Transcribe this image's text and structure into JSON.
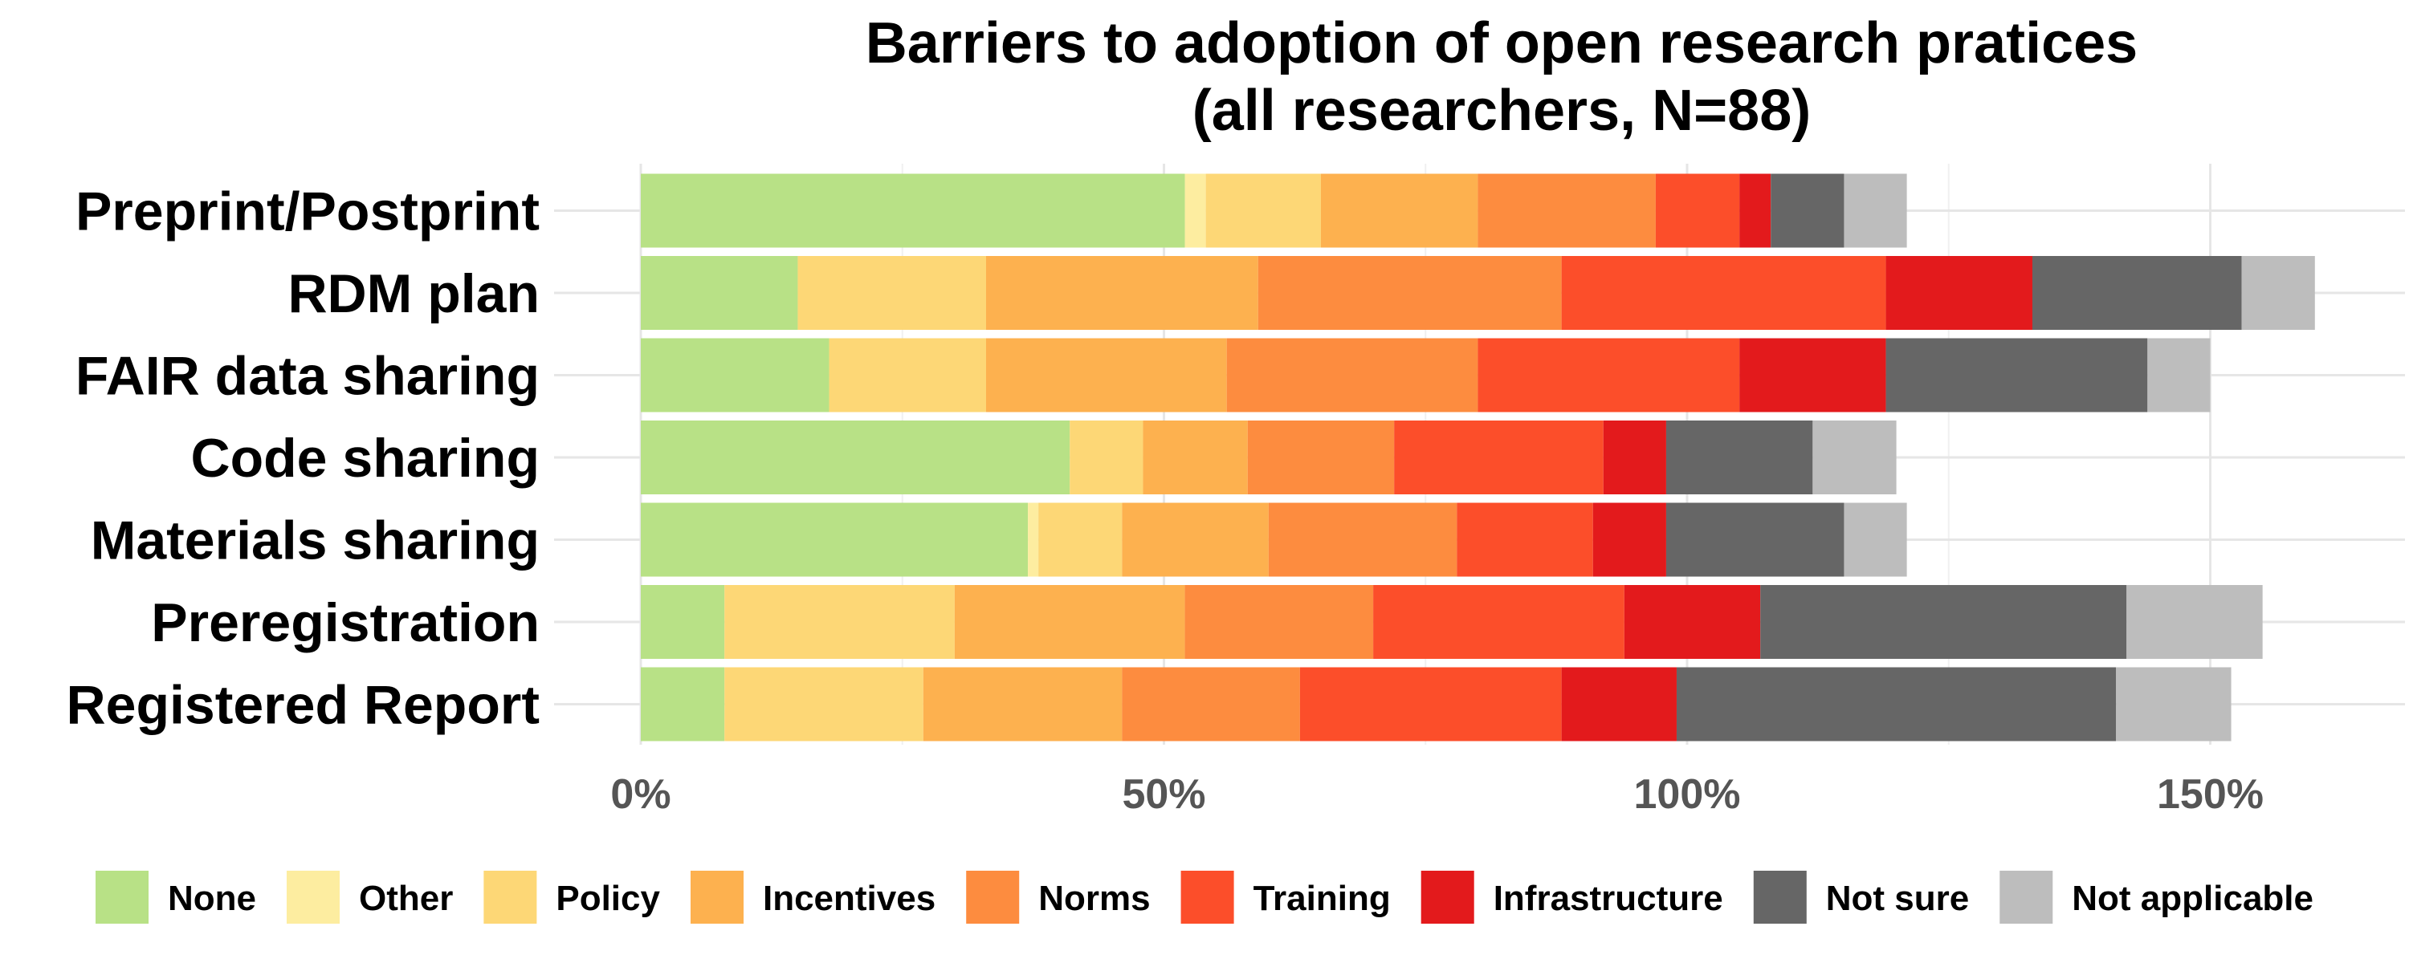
{
  "chart_data": {
    "type": "bar",
    "orientation": "horizontal",
    "stacked": true,
    "title": "Barriers to adoption of open research pratices",
    "subtitle": "(all researchers, N=88)",
    "xlabel": "",
    "ylabel": "",
    "xlim": [
      0,
      1.6
    ],
    "x_ticks": [
      0,
      0.5,
      1.0,
      1.5
    ],
    "x_tick_labels": [
      "0%",
      "50%",
      "100%",
      "150%"
    ],
    "grid": true,
    "legend_position": "bottom",
    "categories": [
      "Preprint/Postprint",
      "RDM plan",
      "FAIR data sharing",
      "Code sharing",
      "Materials sharing",
      "Preregistration",
      "Registered Report"
    ],
    "series": [
      {
        "name": "None",
        "color": "#B8E186",
        "values": [
          0.52,
          0.15,
          0.18,
          0.41,
          0.37,
          0.08,
          0.08
        ]
      },
      {
        "name": "Other",
        "color": "#FDEDA0",
        "values": [
          0.02,
          0.0,
          0.0,
          0.0,
          0.01,
          0.0,
          0.0
        ]
      },
      {
        "name": "Policy",
        "color": "#FDD776",
        "values": [
          0.11,
          0.18,
          0.15,
          0.07,
          0.08,
          0.22,
          0.19
        ]
      },
      {
        "name": "Incentives",
        "color": "#FDB14F",
        "values": [
          0.15,
          0.26,
          0.23,
          0.1,
          0.14,
          0.22,
          0.19
        ]
      },
      {
        "name": "Norms",
        "color": "#FD8C3F",
        "values": [
          0.17,
          0.29,
          0.24,
          0.14,
          0.18,
          0.18,
          0.17
        ]
      },
      {
        "name": "Training",
        "color": "#FC4E2A",
        "values": [
          0.08,
          0.31,
          0.25,
          0.2,
          0.13,
          0.24,
          0.25
        ]
      },
      {
        "name": "Infrastructure",
        "color": "#E31A1C",
        "values": [
          0.03,
          0.14,
          0.14,
          0.06,
          0.07,
          0.13,
          0.11
        ]
      },
      {
        "name": "Not sure",
        "color": "#666666",
        "values": [
          0.07,
          0.2,
          0.25,
          0.14,
          0.17,
          0.35,
          0.42
        ]
      },
      {
        "name": "Not applicable",
        "color": "#BDBDBD",
        "values": [
          0.06,
          0.07,
          0.06,
          0.08,
          0.06,
          0.13,
          0.11
        ]
      }
    ]
  }
}
